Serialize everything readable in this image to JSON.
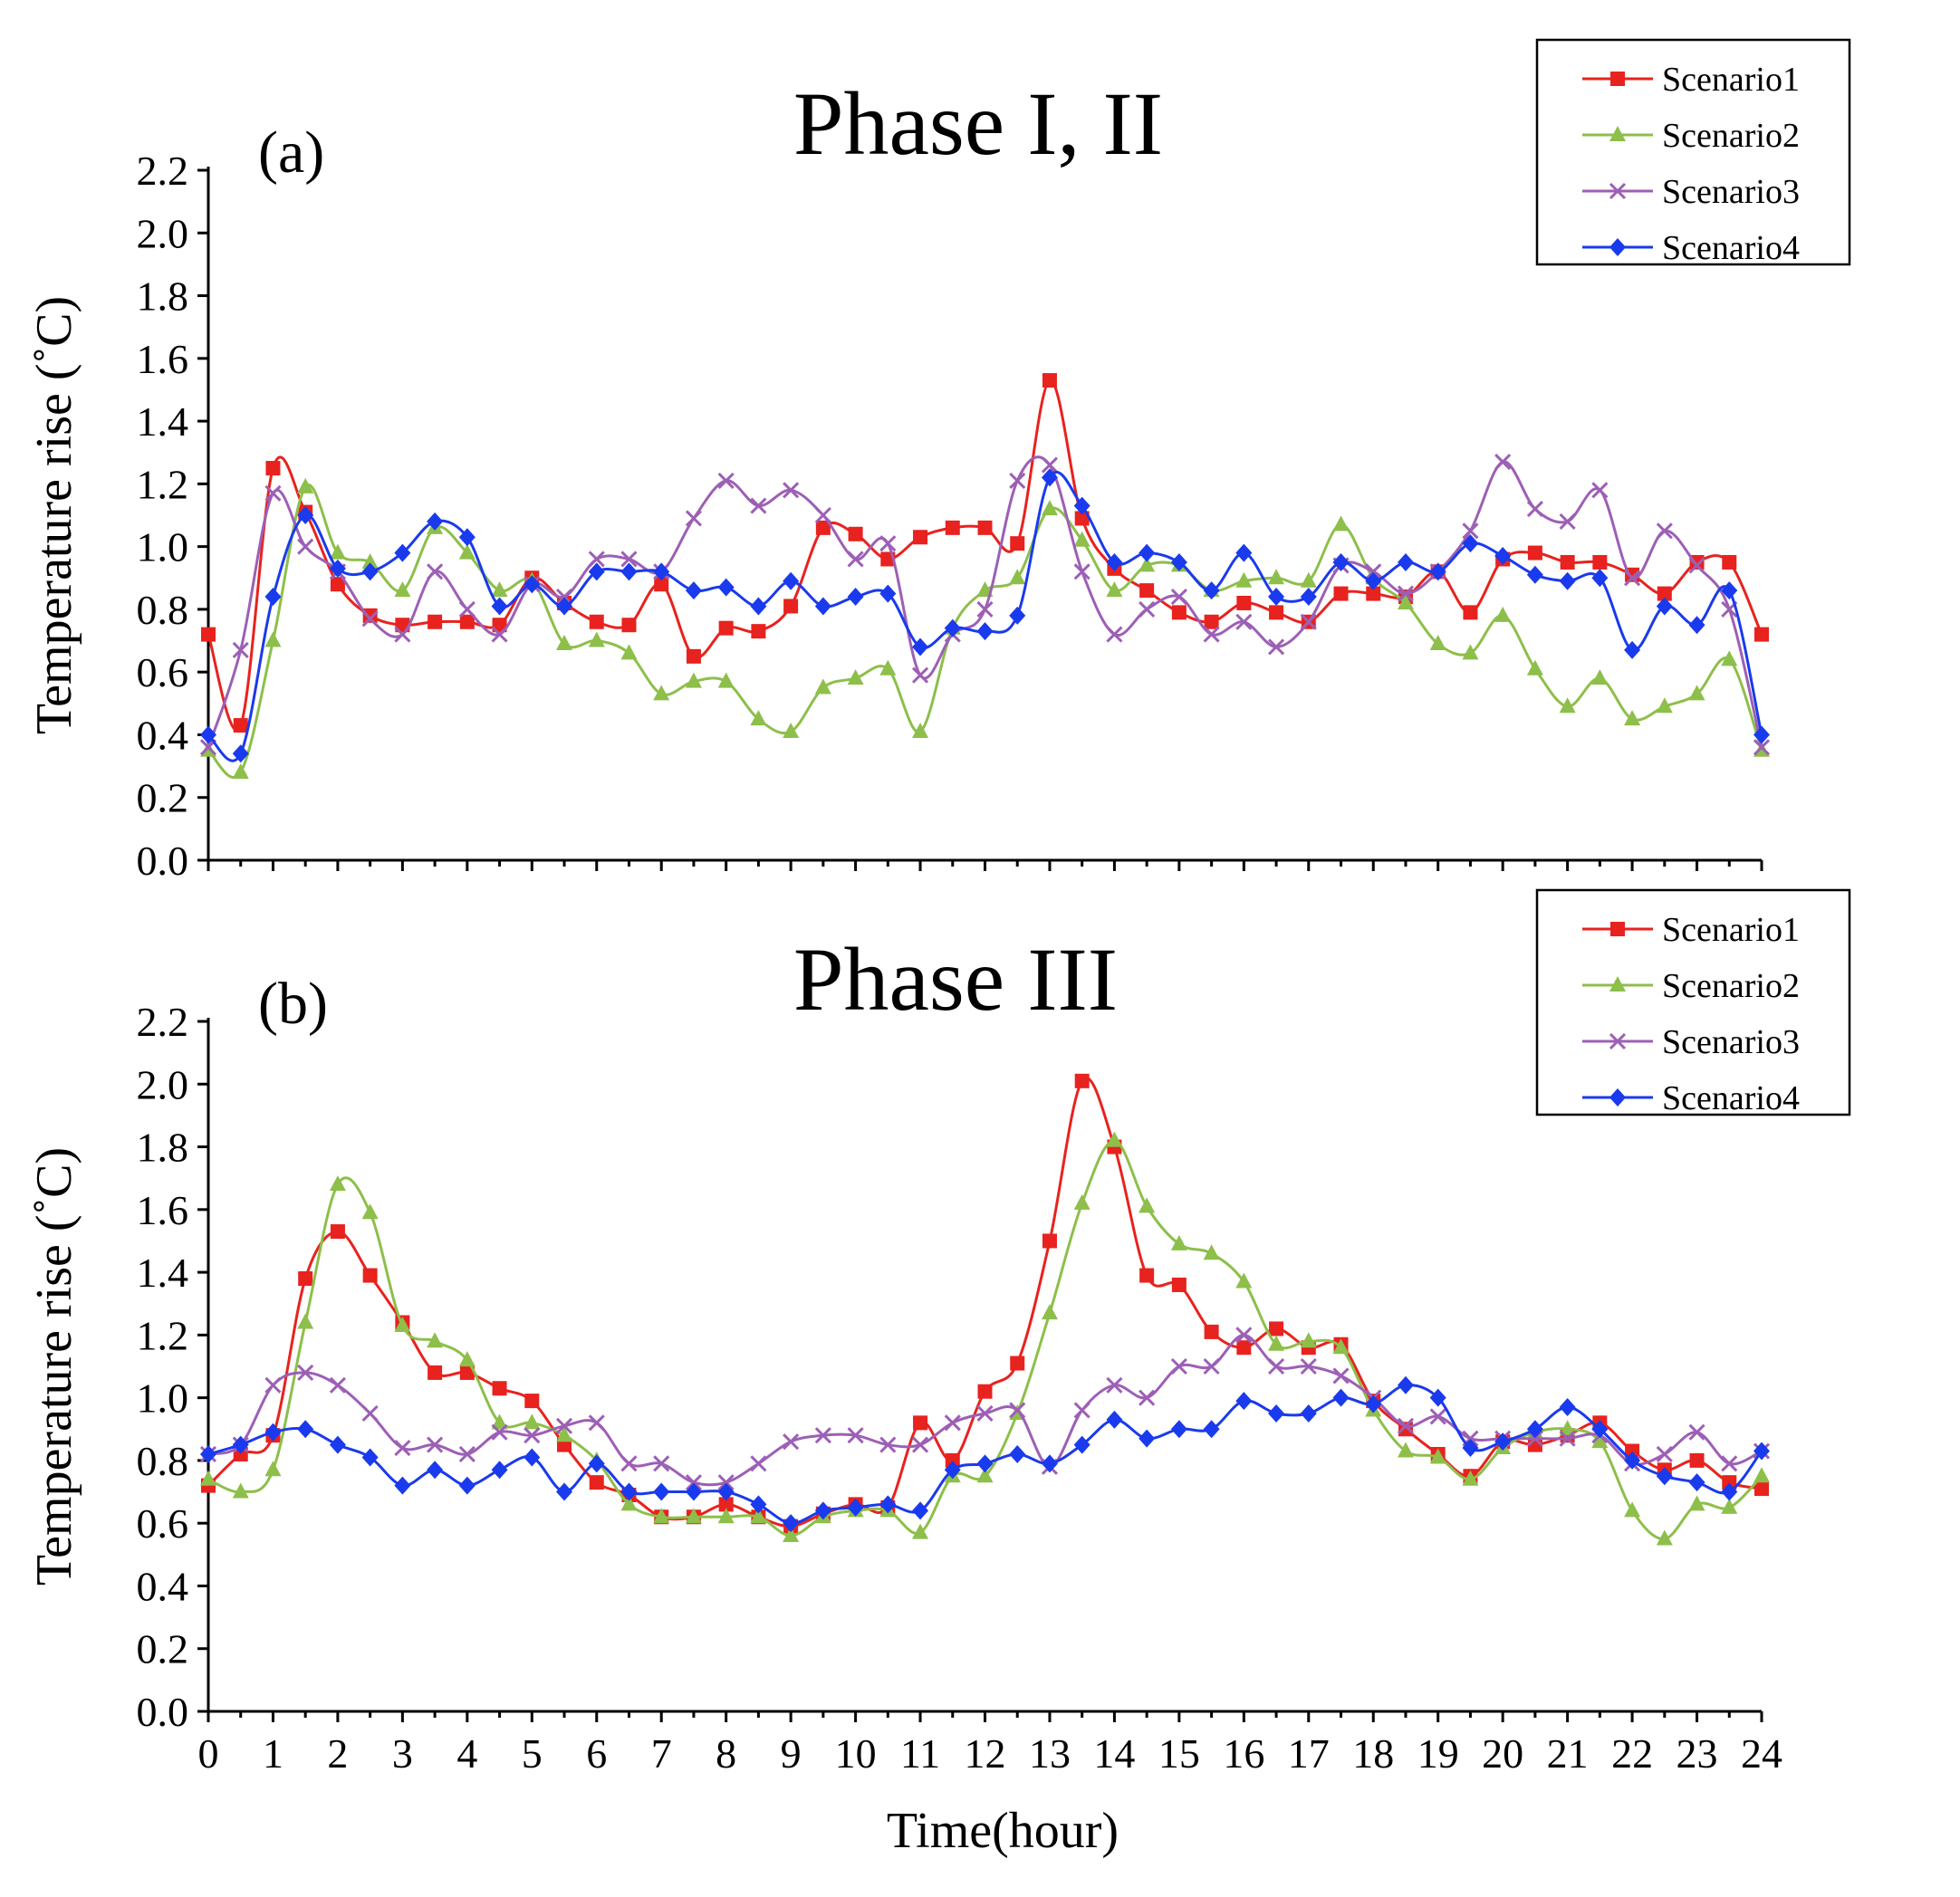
{
  "chart_data": [
    {
      "type": "line",
      "panel_label": "(a)",
      "title": "Phase I, II",
      "xlabel": "",
      "ylabel": "Temperature rise (˚C)",
      "xlim": [
        0,
        24
      ],
      "ylim": [
        0,
        2.2
      ],
      "yticks": [
        "0.0",
        "0.2",
        "0.4",
        "0.6",
        "0.8",
        "1.0",
        "1.2",
        "1.4",
        "1.6",
        "1.8",
        "2.0",
        "2.2"
      ],
      "x": [
        0,
        0.5,
        1,
        1.5,
        2,
        2.5,
        3,
        3.5,
        4,
        4.5,
        5,
        5.5,
        6,
        6.5,
        7,
        7.5,
        8,
        8.5,
        9,
        9.5,
        10,
        10.5,
        11,
        11.5,
        12,
        12.5,
        13,
        13.5,
        14,
        14.5,
        15,
        15.5,
        16,
        16.5,
        17,
        17.5,
        18,
        18.5,
        19,
        19.5,
        20,
        20.5,
        21,
        21.5,
        22,
        22.5,
        23,
        23.5,
        24
      ],
      "legend_position": "top-right",
      "series": [
        {
          "name": "Scenario1",
          "color": "#e8221e",
          "marker": "square",
          "values": [
            0.72,
            0.43,
            1.25,
            1.11,
            0.88,
            0.78,
            0.75,
            0.76,
            0.76,
            0.75,
            0.9,
            0.82,
            0.76,
            0.75,
            0.88,
            0.65,
            0.74,
            0.73,
            0.81,
            1.06,
            1.04,
            0.96,
            1.03,
            1.06,
            1.06,
            1.01,
            1.53,
            1.09,
            0.93,
            0.86,
            0.79,
            0.76,
            0.82,
            0.79,
            0.76,
            0.85,
            0.85,
            0.84,
            0.92,
            0.79,
            0.96,
            0.98,
            0.95,
            0.95,
            0.91,
            0.85,
            0.95,
            0.95,
            0.72
          ]
        },
        {
          "name": "Scenario2",
          "color": "#8dbf4a",
          "marker": "triangle",
          "values": [
            0.35,
            0.28,
            0.7,
            1.19,
            0.98,
            0.95,
            0.86,
            1.06,
            0.98,
            0.86,
            0.89,
            0.69,
            0.7,
            0.66,
            0.53,
            0.57,
            0.57,
            0.45,
            0.41,
            0.55,
            0.58,
            0.61,
            0.41,
            0.74,
            0.86,
            0.9,
            1.12,
            1.02,
            0.86,
            0.94,
            0.94,
            0.86,
            0.89,
            0.9,
            0.89,
            1.07,
            0.9,
            0.82,
            0.69,
            0.66,
            0.78,
            0.61,
            0.49,
            0.58,
            0.45,
            0.49,
            0.53,
            0.64,
            0.35
          ]
        },
        {
          "name": "Scenario3",
          "color": "#9d5fb5",
          "marker": "x",
          "values": [
            0.36,
            0.67,
            1.17,
            1.0,
            0.92,
            0.77,
            0.72,
            0.92,
            0.8,
            0.72,
            0.88,
            0.84,
            0.96,
            0.96,
            0.92,
            1.09,
            1.21,
            1.13,
            1.18,
            1.1,
            0.96,
            1.01,
            0.59,
            0.72,
            0.8,
            1.21,
            1.26,
            0.92,
            0.72,
            0.8,
            0.84,
            0.72,
            0.76,
            0.68,
            0.76,
            0.94,
            0.92,
            0.85,
            0.92,
            1.05,
            1.27,
            1.12,
            1.08,
            1.18,
            0.9,
            1.05,
            0.94,
            0.8,
            0.36
          ]
        },
        {
          "name": "Scenario4",
          "color": "#1a3aed",
          "marker": "diamond",
          "values": [
            0.4,
            0.34,
            0.84,
            1.1,
            0.93,
            0.92,
            0.98,
            1.08,
            1.03,
            0.81,
            0.88,
            0.81,
            0.92,
            0.92,
            0.92,
            0.86,
            0.87,
            0.81,
            0.89,
            0.81,
            0.84,
            0.85,
            0.68,
            0.74,
            0.73,
            0.78,
            1.22,
            1.13,
            0.95,
            0.98,
            0.95,
            0.86,
            0.98,
            0.84,
            0.84,
            0.95,
            0.89,
            0.95,
            0.92,
            1.01,
            0.97,
            0.91,
            0.89,
            0.9,
            0.67,
            0.81,
            0.75,
            0.86,
            0.4
          ]
        }
      ]
    },
    {
      "type": "line",
      "panel_label": "(b)",
      "title": "Phase III",
      "xlabel": "Time(hour)",
      "ylabel": "Temperature rise (˚C)",
      "xlim": [
        0,
        24
      ],
      "ylim": [
        0,
        2.2
      ],
      "yticks": [
        "0.0",
        "0.2",
        "0.4",
        "0.6",
        "0.8",
        "1.0",
        "1.2",
        "1.4",
        "1.6",
        "1.8",
        "2.0",
        "2.2"
      ],
      "xticks": [
        "0",
        "1",
        "2",
        "3",
        "4",
        "5",
        "6",
        "7",
        "8",
        "9",
        "10",
        "11",
        "12",
        "13",
        "14",
        "15",
        "16",
        "17",
        "18",
        "19",
        "20",
        "21",
        "22",
        "23",
        "24"
      ],
      "x": [
        0,
        0.5,
        1,
        1.5,
        2,
        2.5,
        3,
        3.5,
        4,
        4.5,
        5,
        5.5,
        6,
        6.5,
        7,
        7.5,
        8,
        8.5,
        9,
        9.5,
        10,
        10.5,
        11,
        11.5,
        12,
        12.5,
        13,
        13.5,
        14,
        14.5,
        15,
        15.5,
        16,
        16.5,
        17,
        17.5,
        18,
        18.5,
        19,
        19.5,
        20,
        20.5,
        21,
        21.5,
        22,
        22.5,
        23,
        23.5,
        24
      ],
      "legend_position": "top-right",
      "series": [
        {
          "name": "Scenario1",
          "color": "#e8221e",
          "marker": "square",
          "values": [
            0.72,
            0.82,
            0.88,
            1.38,
            1.53,
            1.39,
            1.24,
            1.08,
            1.08,
            1.03,
            0.99,
            0.85,
            0.73,
            0.69,
            0.62,
            0.62,
            0.66,
            0.62,
            0.59,
            0.63,
            0.66,
            0.65,
            0.92,
            0.8,
            1.02,
            1.11,
            1.5,
            2.01,
            1.8,
            1.39,
            1.36,
            1.21,
            1.16,
            1.22,
            1.16,
            1.17,
            0.99,
            0.9,
            0.82,
            0.75,
            0.86,
            0.85,
            0.88,
            0.92,
            0.83,
            0.77,
            0.8,
            0.73,
            0.71
          ]
        },
        {
          "name": "Scenario2",
          "color": "#8dbf4a",
          "marker": "triangle",
          "values": [
            0.74,
            0.7,
            0.77,
            1.24,
            1.68,
            1.59,
            1.23,
            1.18,
            1.12,
            0.92,
            0.92,
            0.88,
            0.8,
            0.66,
            0.62,
            0.62,
            0.62,
            0.62,
            0.56,
            0.62,
            0.64,
            0.64,
            0.57,
            0.75,
            0.75,
            0.95,
            1.27,
            1.62,
            1.82,
            1.61,
            1.49,
            1.46,
            1.37,
            1.17,
            1.18,
            1.16,
            0.96,
            0.83,
            0.81,
            0.74,
            0.84,
            0.89,
            0.9,
            0.86,
            0.64,
            0.55,
            0.66,
            0.65,
            0.75
          ]
        },
        {
          "name": "Scenario3",
          "color": "#9d5fb5",
          "marker": "x",
          "values": [
            0.82,
            0.85,
            1.04,
            1.08,
            1.04,
            0.95,
            0.84,
            0.85,
            0.82,
            0.89,
            0.88,
            0.91,
            0.92,
            0.79,
            0.79,
            0.73,
            0.73,
            0.79,
            0.86,
            0.88,
            0.88,
            0.85,
            0.85,
            0.92,
            0.95,
            0.96,
            0.78,
            0.96,
            1.04,
            1.0,
            1.1,
            1.1,
            1.2,
            1.1,
            1.1,
            1.07,
            1.0,
            0.91,
            0.94,
            0.87,
            0.87,
            0.87,
            0.87,
            0.88,
            0.79,
            0.82,
            0.89,
            0.79,
            0.83
          ]
        },
        {
          "name": "Scenario4",
          "color": "#1a3aed",
          "marker": "diamond",
          "values": [
            0.82,
            0.85,
            0.89,
            0.9,
            0.85,
            0.81,
            0.72,
            0.77,
            0.72,
            0.77,
            0.81,
            0.7,
            0.79,
            0.7,
            0.7,
            0.7,
            0.7,
            0.66,
            0.6,
            0.64,
            0.65,
            0.66,
            0.64,
            0.77,
            0.79,
            0.82,
            0.79,
            0.85,
            0.93,
            0.87,
            0.9,
            0.9,
            0.99,
            0.95,
            0.95,
            1.0,
            0.98,
            1.04,
            1.0,
            0.84,
            0.86,
            0.9,
            0.97,
            0.9,
            0.8,
            0.75,
            0.73,
            0.7,
            0.83
          ]
        }
      ]
    }
  ]
}
